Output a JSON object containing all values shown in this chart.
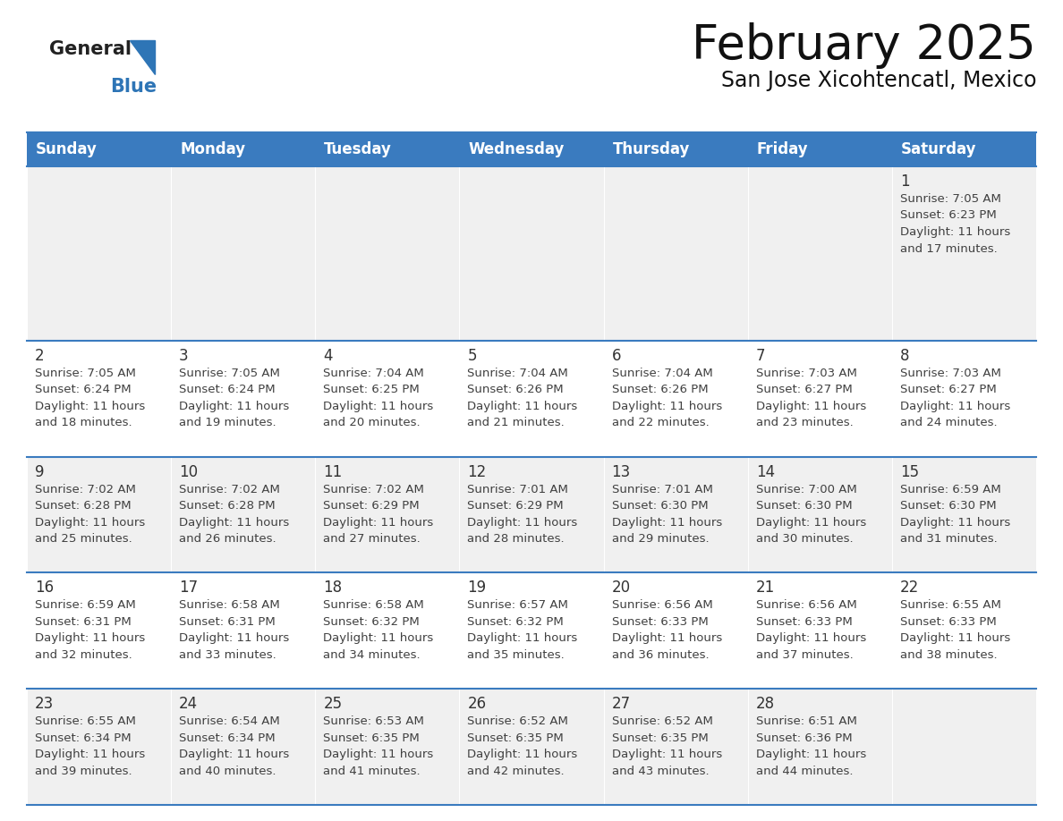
{
  "title": "February 2025",
  "subtitle": "San Jose Xicohtencatl, Mexico",
  "days_of_week": [
    "Sunday",
    "Monday",
    "Tuesday",
    "Wednesday",
    "Thursday",
    "Friday",
    "Saturday"
  ],
  "header_bg": "#3a7bbf",
  "header_text": "#FFFFFF",
  "cell_bg_odd": "#f0f0f0",
  "cell_bg_even": "#ffffff",
  "text_color": "#404040",
  "day_number_color": "#333333",
  "line_color": "#3a7bbf",
  "logo_general_color": "#222222",
  "logo_blue_color": "#2E75B6",
  "title_color": "#111111",
  "subtitle_color": "#111111",
  "calendar_data": [
    [
      null,
      null,
      null,
      null,
      null,
      null,
      1
    ],
    [
      2,
      3,
      4,
      5,
      6,
      7,
      8
    ],
    [
      9,
      10,
      11,
      12,
      13,
      14,
      15
    ],
    [
      16,
      17,
      18,
      19,
      20,
      21,
      22
    ],
    [
      23,
      24,
      25,
      26,
      27,
      28,
      null
    ]
  ],
  "sunrise_data": {
    "1": "7:05 AM",
    "2": "7:05 AM",
    "3": "7:05 AM",
    "4": "7:04 AM",
    "5": "7:04 AM",
    "6": "7:04 AM",
    "7": "7:03 AM",
    "8": "7:03 AM",
    "9": "7:02 AM",
    "10": "7:02 AM",
    "11": "7:02 AM",
    "12": "7:01 AM",
    "13": "7:01 AM",
    "14": "7:00 AM",
    "15": "6:59 AM",
    "16": "6:59 AM",
    "17": "6:58 AM",
    "18": "6:58 AM",
    "19": "6:57 AM",
    "20": "6:56 AM",
    "21": "6:56 AM",
    "22": "6:55 AM",
    "23": "6:55 AM",
    "24": "6:54 AM",
    "25": "6:53 AM",
    "26": "6:52 AM",
    "27": "6:52 AM",
    "28": "6:51 AM"
  },
  "sunset_data": {
    "1": "6:23 PM",
    "2": "6:24 PM",
    "3": "6:24 PM",
    "4": "6:25 PM",
    "5": "6:26 PM",
    "6": "6:26 PM",
    "7": "6:27 PM",
    "8": "6:27 PM",
    "9": "6:28 PM",
    "10": "6:28 PM",
    "11": "6:29 PM",
    "12": "6:29 PM",
    "13": "6:30 PM",
    "14": "6:30 PM",
    "15": "6:30 PM",
    "16": "6:31 PM",
    "17": "6:31 PM",
    "18": "6:32 PM",
    "19": "6:32 PM",
    "20": "6:33 PM",
    "21": "6:33 PM",
    "22": "6:33 PM",
    "23": "6:34 PM",
    "24": "6:34 PM",
    "25": "6:35 PM",
    "26": "6:35 PM",
    "27": "6:35 PM",
    "28": "6:36 PM"
  },
  "daylight_data": {
    "1": "and 17 minutes.",
    "2": "and 18 minutes.",
    "3": "and 19 minutes.",
    "4": "and 20 minutes.",
    "5": "and 21 minutes.",
    "6": "and 22 minutes.",
    "7": "and 23 minutes.",
    "8": "and 24 minutes.",
    "9": "and 25 minutes.",
    "10": "and 26 minutes.",
    "11": "and 27 minutes.",
    "12": "and 28 minutes.",
    "13": "and 29 minutes.",
    "14": "and 30 minutes.",
    "15": "and 31 minutes.",
    "16": "and 32 minutes.",
    "17": "and 33 minutes.",
    "18": "and 34 minutes.",
    "19": "and 35 minutes.",
    "20": "and 36 minutes.",
    "21": "and 37 minutes.",
    "22": "and 38 minutes.",
    "23": "and 39 minutes.",
    "24": "and 40 minutes.",
    "25": "and 41 minutes.",
    "26": "and 42 minutes.",
    "27": "and 43 minutes.",
    "28": "and 44 minutes."
  }
}
